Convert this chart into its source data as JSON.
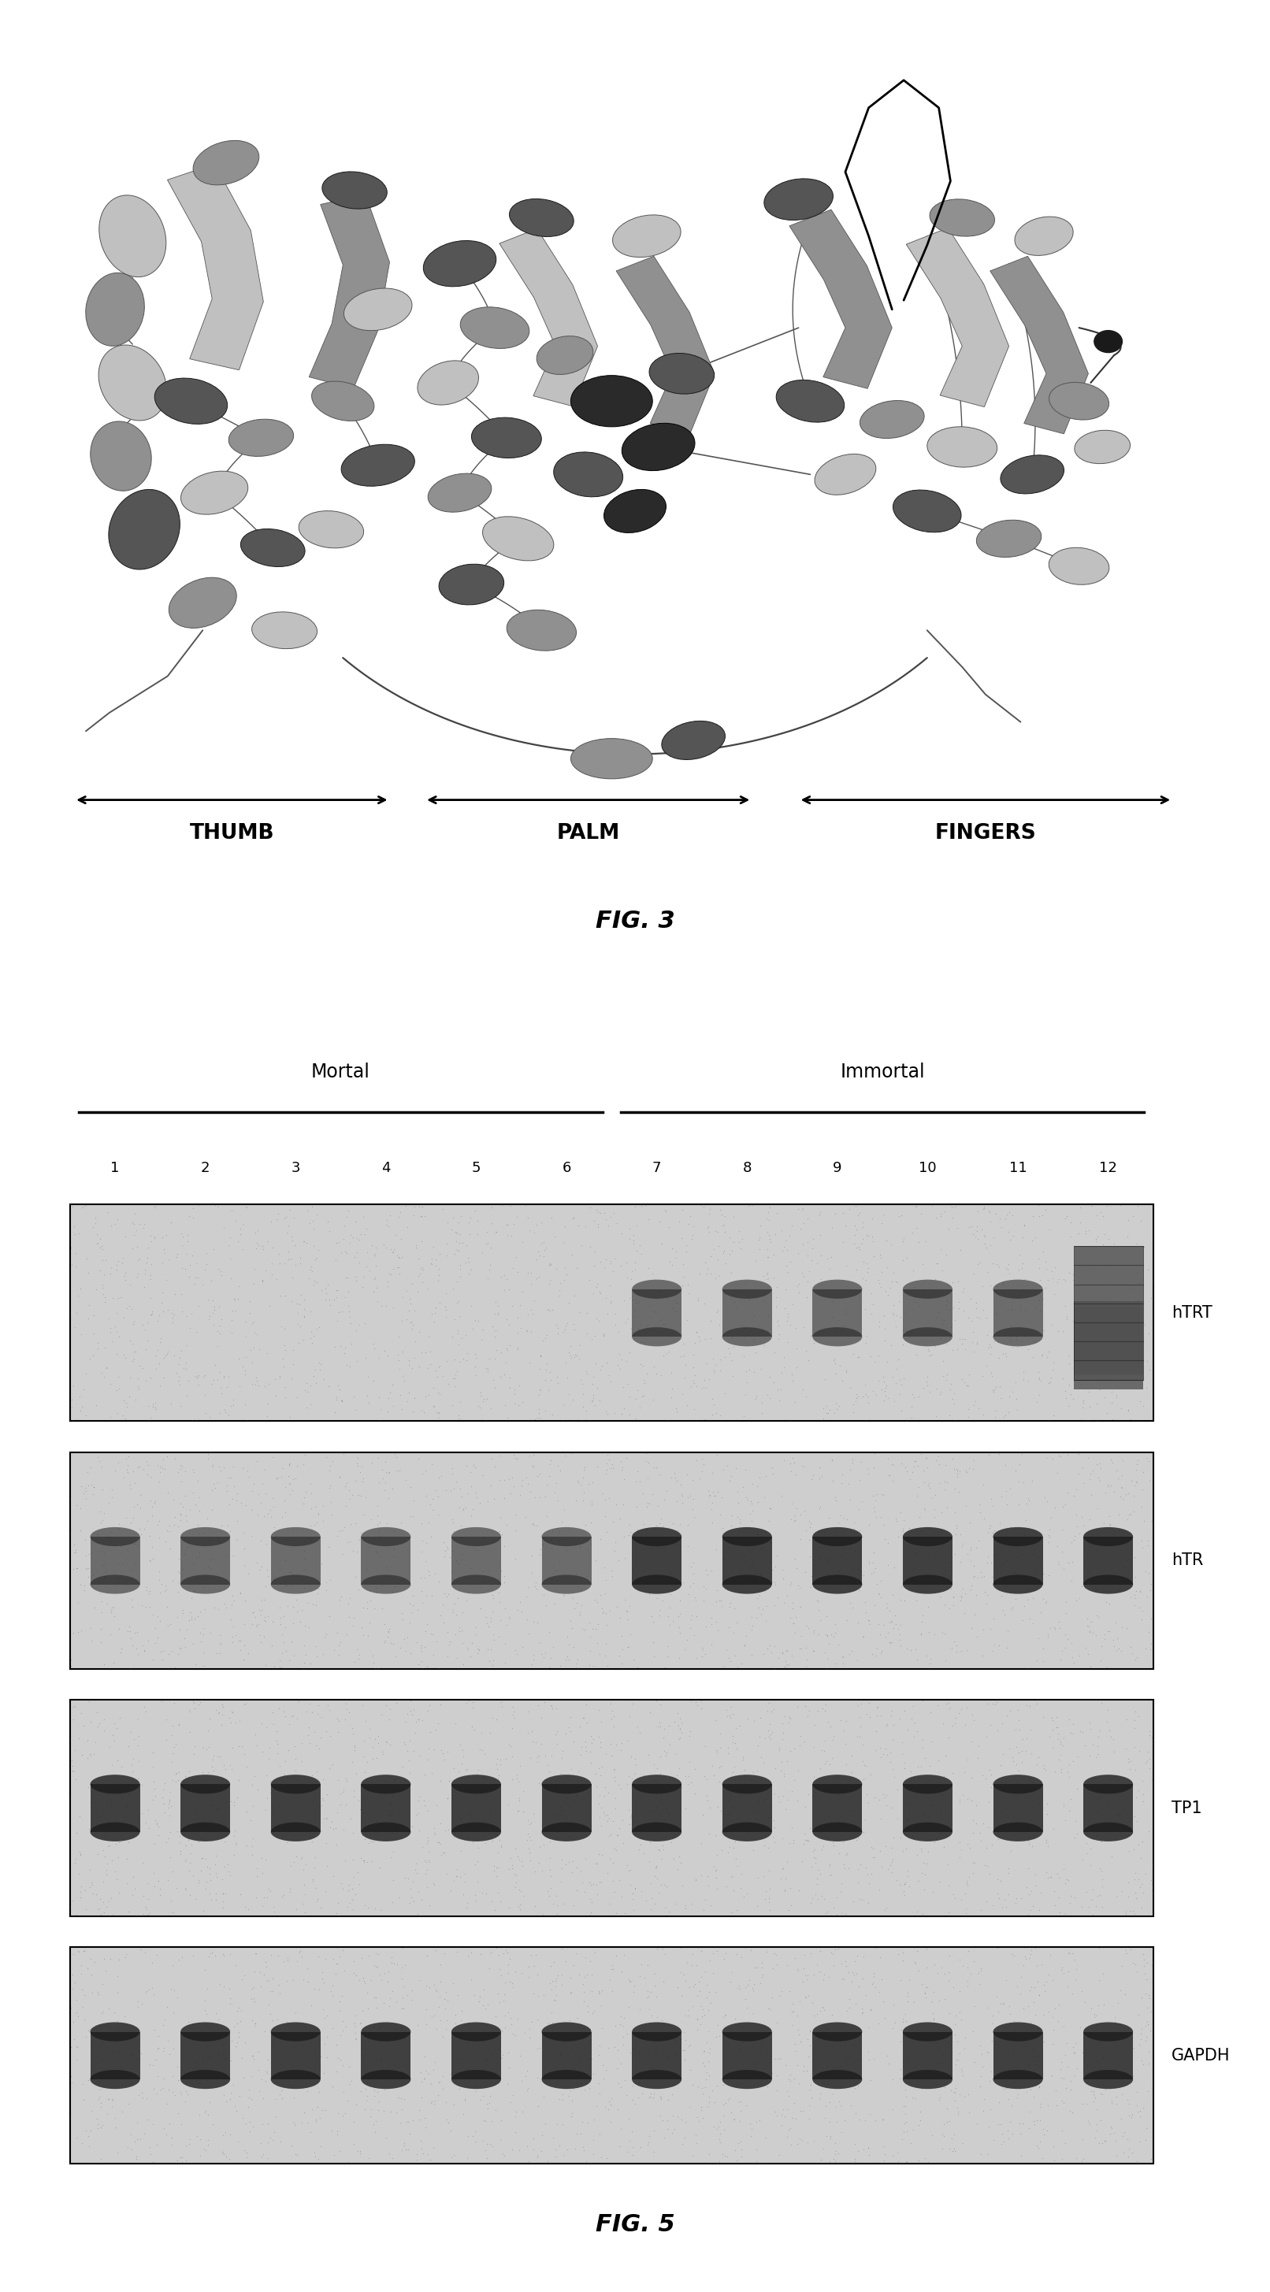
{
  "fig3_caption": "FIG. 3",
  "fig5_caption": "FIG. 5",
  "arrow_labels": [
    "THUMB",
    "PALM",
    "FINGERS"
  ],
  "mortal_label": "Mortal",
  "immortal_label": "Immortal",
  "lane_numbers": [
    "1",
    "2",
    "3",
    "4",
    "5",
    "6",
    "7",
    "8",
    "9",
    "10",
    "11",
    "12"
  ],
  "gel_labels": [
    "hTRT",
    "hTR",
    "TP1",
    "GAPDH"
  ],
  "bg_color": "#ffffff",
  "panel_bg_color": "#d0d0d0",
  "band_color": "#1a1a1a",
  "page_width": 16.12,
  "page_height": 29.1,
  "hTRT_bands": [
    0,
    0,
    0,
    0,
    0,
    0,
    1,
    1,
    1,
    1,
    1,
    3
  ],
  "hTR_bands": [
    1,
    1,
    1,
    1,
    1,
    1,
    2,
    2,
    2,
    2,
    2,
    2
  ],
  "TP1_bands": [
    2,
    2,
    2,
    2,
    2,
    2,
    2,
    2,
    2,
    2,
    2,
    2
  ],
  "GAPDH_bands": [
    2,
    2,
    2,
    2,
    2,
    2,
    2,
    2,
    2,
    2,
    2,
    2
  ]
}
